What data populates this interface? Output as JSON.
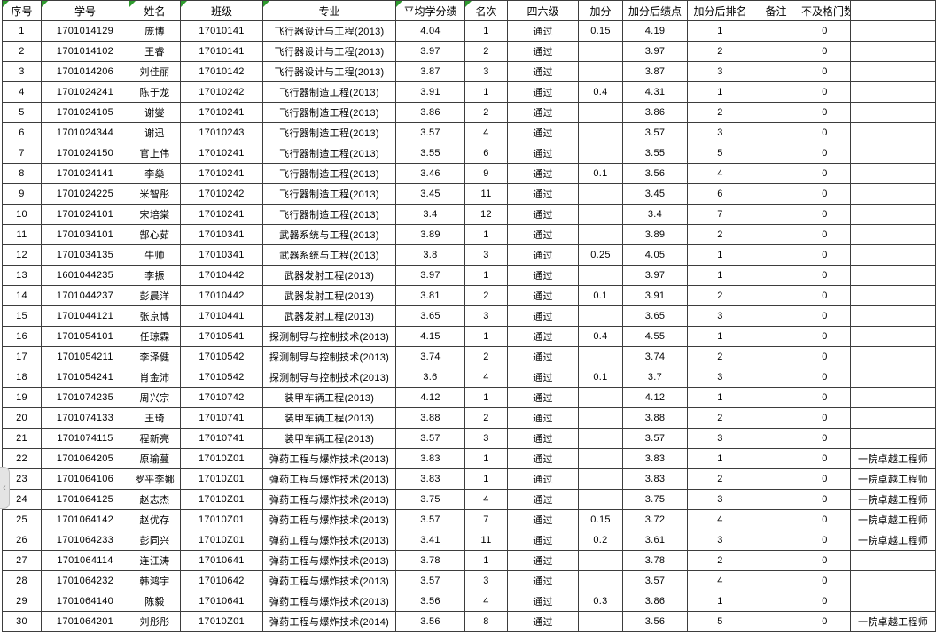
{
  "table": {
    "headers": [
      {
        "label": "序号",
        "error_marker": true
      },
      {
        "label": "学号",
        "error_marker": true
      },
      {
        "label": "姓名",
        "error_marker": true
      },
      {
        "label": "班级",
        "error_marker": true
      },
      {
        "label": "专业",
        "error_marker": true
      },
      {
        "label": "平均学分绩",
        "error_marker": true
      },
      {
        "label": "名次",
        "error_marker": true
      },
      {
        "label": "四六级",
        "error_marker": false
      },
      {
        "label": "加分",
        "error_marker": false
      },
      {
        "label": "加分后绩点",
        "error_marker": false
      },
      {
        "label": "加分后排名",
        "error_marker": false
      },
      {
        "label": "备注",
        "error_marker": false
      },
      {
        "label": "不及格门数",
        "error_marker": false
      },
      {
        "label": "",
        "error_marker": false
      }
    ],
    "rows": [
      [
        "1",
        "1701014129",
        "庞博",
        "17010141",
        "飞行器设计与工程(2013)",
        "4.04",
        "1",
        "通过",
        "0.15",
        "4.19",
        "1",
        "",
        "0",
        ""
      ],
      [
        "2",
        "1701014102",
        "王睿",
        "17010141",
        "飞行器设计与工程(2013)",
        "3.97",
        "2",
        "通过",
        "",
        "3.97",
        "2",
        "",
        "0",
        ""
      ],
      [
        "3",
        "1701014206",
        "刘佳丽",
        "17010142",
        "飞行器设计与工程(2013)",
        "3.87",
        "3",
        "通过",
        "",
        "3.87",
        "3",
        "",
        "0",
        ""
      ],
      [
        "4",
        "1701024241",
        "陈于龙",
        "17010242",
        "飞行器制造工程(2013)",
        "3.91",
        "1",
        "通过",
        "0.4",
        "4.31",
        "1",
        "",
        "0",
        ""
      ],
      [
        "5",
        "1701024105",
        "谢燮",
        "17010241",
        "飞行器制造工程(2013)",
        "3.86",
        "2",
        "通过",
        "",
        "3.86",
        "2",
        "",
        "0",
        ""
      ],
      [
        "6",
        "1701024344",
        "谢迅",
        "17010243",
        "飞行器制造工程(2013)",
        "3.57",
        "4",
        "通过",
        "",
        "3.57",
        "3",
        "",
        "0",
        ""
      ],
      [
        "7",
        "1701024150",
        "官上伟",
        "17010241",
        "飞行器制造工程(2013)",
        "3.55",
        "6",
        "通过",
        "",
        "3.55",
        "5",
        "",
        "0",
        ""
      ],
      [
        "8",
        "1701024141",
        "李燊",
        "17010241",
        "飞行器制造工程(2013)",
        "3.46",
        "9",
        "通过",
        "0.1",
        "3.56",
        "4",
        "",
        "0",
        ""
      ],
      [
        "9",
        "1701024225",
        "米智彤",
        "17010242",
        "飞行器制造工程(2013)",
        "3.45",
        "11",
        "通过",
        "",
        "3.45",
        "6",
        "",
        "0",
        ""
      ],
      [
        "10",
        "1701024101",
        "宋培棠",
        "17010241",
        "飞行器制造工程(2013)",
        "3.4",
        "12",
        "通过",
        "",
        "3.4",
        "7",
        "",
        "0",
        ""
      ],
      [
        "11",
        "1701034101",
        "郜心茹",
        "17010341",
        "武器系统与工程(2013)",
        "3.89",
        "1",
        "通过",
        "",
        "3.89",
        "2",
        "",
        "0",
        ""
      ],
      [
        "12",
        "1701034135",
        "牛帅",
        "17010341",
        "武器系统与工程(2013)",
        "3.8",
        "3",
        "通过",
        "0.25",
        "4.05",
        "1",
        "",
        "0",
        ""
      ],
      [
        "13",
        "1601044235",
        "李振",
        "17010442",
        "武器发射工程(2013)",
        "3.97",
        "1",
        "通过",
        "",
        "3.97",
        "1",
        "",
        "0",
        ""
      ],
      [
        "14",
        "1701044237",
        "彭晨洋",
        "17010442",
        "武器发射工程(2013)",
        "3.81",
        "2",
        "通过",
        "0.1",
        "3.91",
        "2",
        "",
        "0",
        ""
      ],
      [
        "15",
        "1701044121",
        "张京博",
        "17010441",
        "武器发射工程(2013)",
        "3.65",
        "3",
        "通过",
        "",
        "3.65",
        "3",
        "",
        "0",
        ""
      ],
      [
        "16",
        "1701054101",
        "任琼霖",
        "17010541",
        "探测制导与控制技术(2013)",
        "4.15",
        "1",
        "通过",
        "0.4",
        "4.55",
        "1",
        "",
        "0",
        ""
      ],
      [
        "17",
        "1701054211",
        "李泽健",
        "17010542",
        "探测制导与控制技术(2013)",
        "3.74",
        "2",
        "通过",
        "",
        "3.74",
        "2",
        "",
        "0",
        ""
      ],
      [
        "18",
        "1701054241",
        "肖金沛",
        "17010542",
        "探测制导与控制技术(2013)",
        "3.6",
        "4",
        "通过",
        "0.1",
        "3.7",
        "3",
        "",
        "0",
        ""
      ],
      [
        "19",
        "1701074235",
        "周兴宗",
        "17010742",
        "装甲车辆工程(2013)",
        "4.12",
        "1",
        "通过",
        "",
        "4.12",
        "1",
        "",
        "0",
        ""
      ],
      [
        "20",
        "1701074133",
        "王琦",
        "17010741",
        "装甲车辆工程(2013)",
        "3.88",
        "2",
        "通过",
        "",
        "3.88",
        "2",
        "",
        "0",
        ""
      ],
      [
        "21",
        "1701074115",
        "程新亮",
        "17010741",
        "装甲车辆工程(2013)",
        "3.57",
        "3",
        "通过",
        "",
        "3.57",
        "3",
        "",
        "0",
        ""
      ],
      [
        "22",
        "1701064205",
        "原瑜蔓",
        "17010Z01",
        "弹药工程与爆炸技术(2013)",
        "3.83",
        "1",
        "通过",
        "",
        "3.83",
        "1",
        "",
        "0",
        "一院卓越工程师"
      ],
      [
        "23",
        "1701064106",
        "罗平李娜",
        "17010Z01",
        "弹药工程与爆炸技术(2013)",
        "3.83",
        "1",
        "通过",
        "",
        "3.83",
        "2",
        "",
        "0",
        "一院卓越工程师"
      ],
      [
        "24",
        "1701064125",
        "赵志杰",
        "17010Z01",
        "弹药工程与爆炸技术(2013)",
        "3.75",
        "4",
        "通过",
        "",
        "3.75",
        "3",
        "",
        "0",
        "一院卓越工程师"
      ],
      [
        "25",
        "1701064142",
        "赵优存",
        "17010Z01",
        "弹药工程与爆炸技术(2013)",
        "3.57",
        "7",
        "通过",
        "0.15",
        "3.72",
        "4",
        "",
        "0",
        "一院卓越工程师"
      ],
      [
        "26",
        "1701064233",
        "彭同兴",
        "17010Z01",
        "弹药工程与爆炸技术(2013)",
        "3.41",
        "11",
        "通过",
        "0.2",
        "3.61",
        "3",
        "",
        "0",
        "一院卓越工程师"
      ],
      [
        "27",
        "1701064114",
        "连江涛",
        "17010641",
        "弹药工程与爆炸技术(2013)",
        "3.78",
        "1",
        "通过",
        "",
        "3.78",
        "2",
        "",
        "0",
        ""
      ],
      [
        "28",
        "1701064232",
        "韩鸿宇",
        "17010642",
        "弹药工程与爆炸技术(2013)",
        "3.57",
        "3",
        "通过",
        "",
        "3.57",
        "4",
        "",
        "0",
        ""
      ],
      [
        "29",
        "1701064140",
        "陈毅",
        "17010641",
        "弹药工程与爆炸技术(2013)",
        "3.56",
        "4",
        "通过",
        "0.3",
        "3.86",
        "1",
        "",
        "0",
        ""
      ],
      [
        "30",
        "1701064201",
        "刘彤彤",
        "17010Z01",
        "弹药工程与爆炸技术(2014)",
        "3.56",
        "8",
        "通过",
        "",
        "3.56",
        "5",
        "",
        "0",
        "一院卓越工程师"
      ]
    ]
  },
  "side_nav": {
    "collapse_label": "‹"
  },
  "colors": {
    "error_triangle": "#2e9b2e",
    "grid_line": "#3d3d3d",
    "tab_background": "#e4e4e4"
  }
}
